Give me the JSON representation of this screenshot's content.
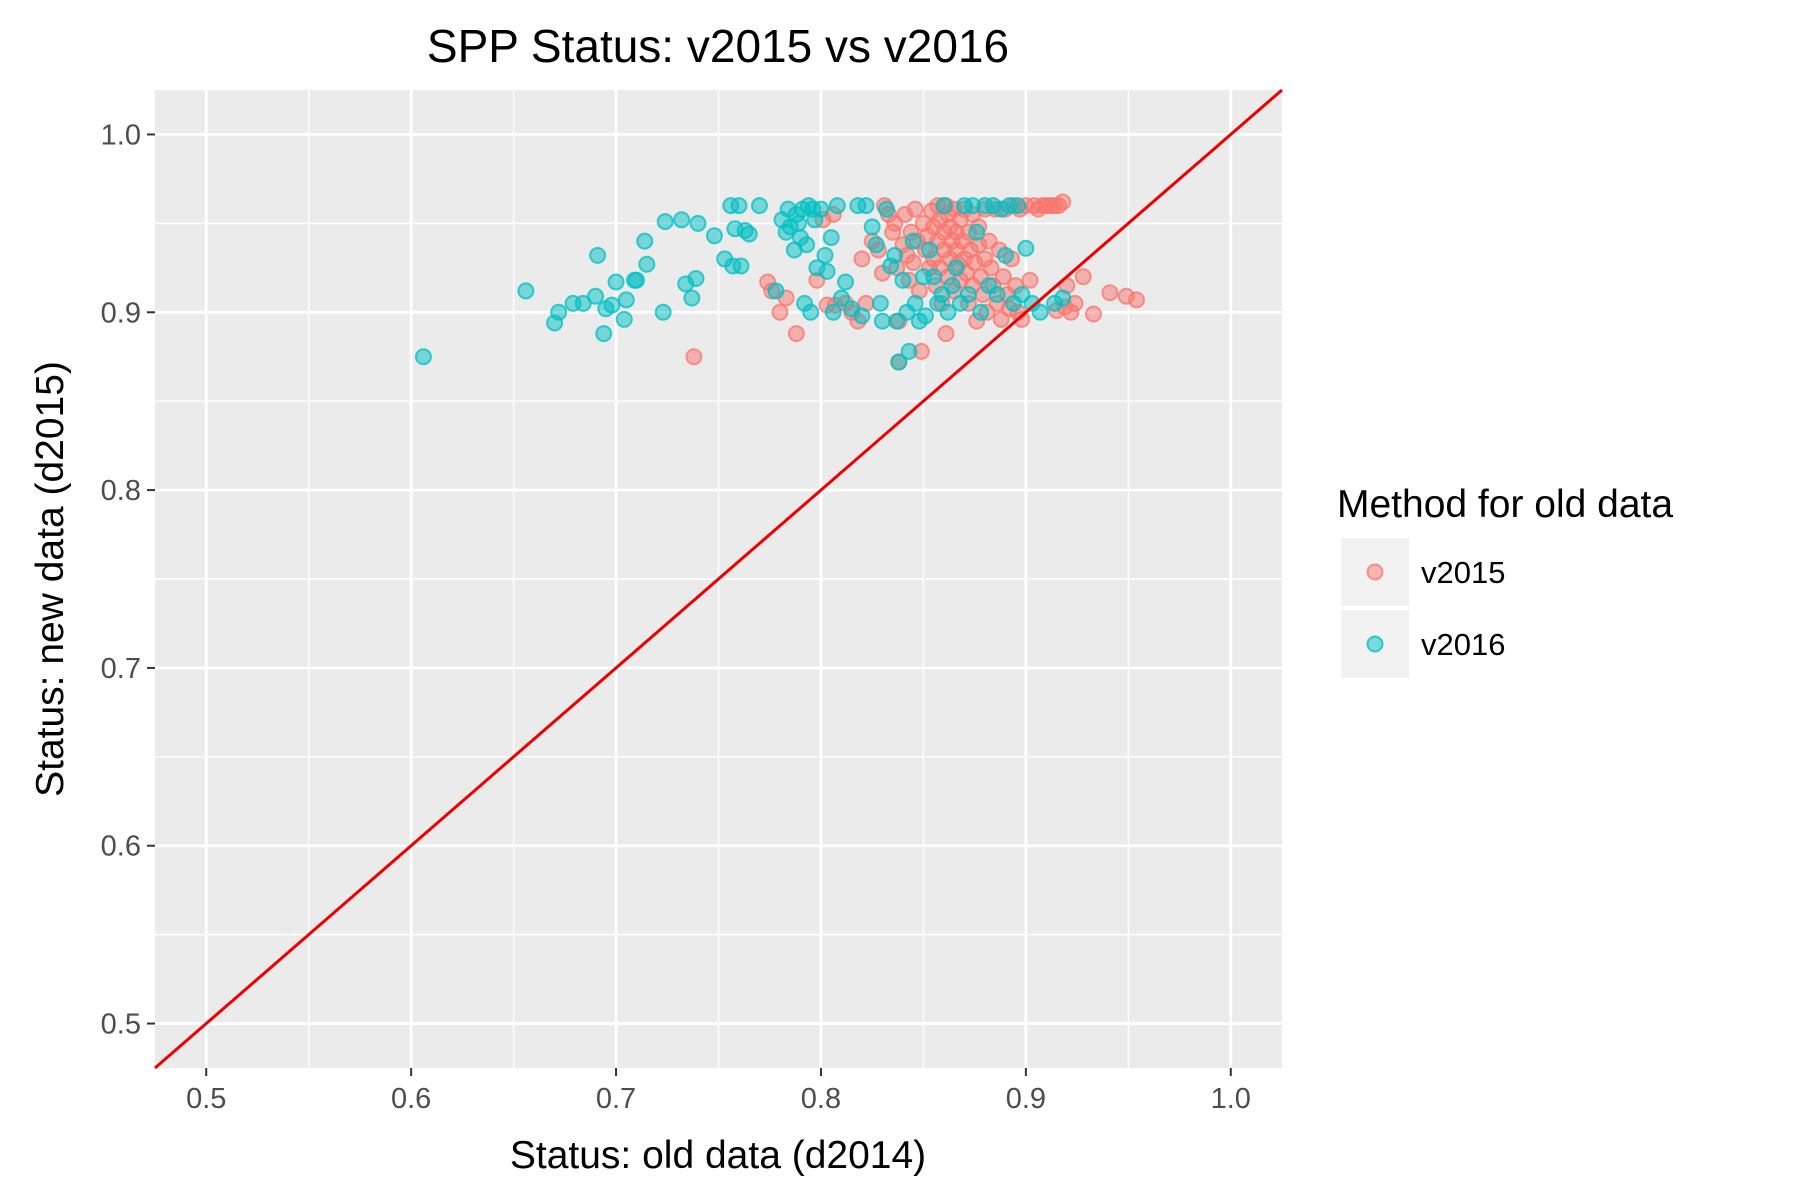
{
  "chart_data": {
    "type": "scatter",
    "title": "SPP Status: v2015 vs v2016",
    "xlabel": "Status: old data (d2014)",
    "ylabel": "Status: new data (d2015)",
    "xlim": [
      0.475,
      1.025
    ],
    "ylim": [
      0.475,
      1.025
    ],
    "x_ticks": [
      "0.5",
      "0.6",
      "0.7",
      "0.8",
      "0.9",
      "1.0"
    ],
    "y_ticks": [
      "0.5",
      "0.6",
      "0.7",
      "0.8",
      "0.9",
      "1.0"
    ],
    "grid": true,
    "legend": {
      "title": "Method for old data",
      "position": "right"
    },
    "reference_line": {
      "slope": 1,
      "intercept": 0,
      "color": "#ee0000"
    },
    "series": [
      {
        "name": "v2015",
        "color": "#F8766D",
        "points": [
          [
            0.738,
            0.875
          ],
          [
            0.774,
            0.917
          ],
          [
            0.776,
            0.912
          ],
          [
            0.78,
            0.9
          ],
          [
            0.783,
            0.908
          ],
          [
            0.788,
            0.888
          ],
          [
            0.798,
            0.918
          ],
          [
            0.801,
            0.952
          ],
          [
            0.803,
            0.904
          ],
          [
            0.806,
            0.955
          ],
          [
            0.807,
            0.904
          ],
          [
            0.812,
            0.905
          ],
          [
            0.815,
            0.9
          ],
          [
            0.818,
            0.895
          ],
          [
            0.82,
            0.93
          ],
          [
            0.822,
            0.905
          ],
          [
            0.825,
            0.94
          ],
          [
            0.828,
            0.935
          ],
          [
            0.83,
            0.922
          ],
          [
            0.831,
            0.96
          ],
          [
            0.833,
            0.955
          ],
          [
            0.835,
            0.945
          ],
          [
            0.836,
            0.95
          ],
          [
            0.837,
            0.925
          ],
          [
            0.838,
            0.895
          ],
          [
            0.838,
            0.872
          ],
          [
            0.84,
            0.938
          ],
          [
            0.841,
            0.955
          ],
          [
            0.842,
            0.932
          ],
          [
            0.843,
            0.918
          ],
          [
            0.844,
            0.945
          ],
          [
            0.845,
            0.928
          ],
          [
            0.846,
            0.958
          ],
          [
            0.847,
            0.94
          ],
          [
            0.848,
            0.912
          ],
          [
            0.849,
            0.878
          ],
          [
            0.85,
            0.95
          ],
          [
            0.851,
            0.935
          ],
          [
            0.852,
            0.943
          ],
          [
            0.853,
            0.925
          ],
          [
            0.854,
            0.957
          ],
          [
            0.855,
            0.948
          ],
          [
            0.855,
            0.93
          ],
          [
            0.856,
            0.915
          ],
          [
            0.857,
            0.96
          ],
          [
            0.857,
            0.94
          ],
          [
            0.858,
            0.952
          ],
          [
            0.858,
            0.925
          ],
          [
            0.859,
            0.905
          ],
          [
            0.86,
            0.945
          ],
          [
            0.86,
            0.935
          ],
          [
            0.861,
            0.96
          ],
          [
            0.861,
            0.888
          ],
          [
            0.862,
            0.955
          ],
          [
            0.862,
            0.92
          ],
          [
            0.863,
            0.948
          ],
          [
            0.863,
            0.93
          ],
          [
            0.864,
            0.94
          ],
          [
            0.865,
            0.958
          ],
          [
            0.865,
            0.912
          ],
          [
            0.866,
            0.945
          ],
          [
            0.866,
            0.935
          ],
          [
            0.867,
            0.927
          ],
          [
            0.868,
            0.952
          ],
          [
            0.868,
            0.918
          ],
          [
            0.869,
            0.94
          ],
          [
            0.87,
            0.958
          ],
          [
            0.87,
            0.93
          ],
          [
            0.871,
            0.922
          ],
          [
            0.872,
            0.945
          ],
          [
            0.872,
            0.905
          ],
          [
            0.873,
            0.935
          ],
          [
            0.874,
            0.955
          ],
          [
            0.874,
            0.915
          ],
          [
            0.875,
            0.928
          ],
          [
            0.876,
            0.895
          ],
          [
            0.877,
            0.948
          ],
          [
            0.877,
            0.938
          ],
          [
            0.878,
            0.92
          ],
          [
            0.879,
            0.91
          ],
          [
            0.88,
            0.958
          ],
          [
            0.88,
            0.93
          ],
          [
            0.881,
            0.9
          ],
          [
            0.882,
            0.94
          ],
          [
            0.883,
            0.925
          ],
          [
            0.884,
            0.915
          ],
          [
            0.885,
            0.958
          ],
          [
            0.886,
            0.905
          ],
          [
            0.887,
            0.935
          ],
          [
            0.888,
            0.896
          ],
          [
            0.889,
            0.92
          ],
          [
            0.89,
            0.958
          ],
          [
            0.891,
            0.91
          ],
          [
            0.892,
            0.902
          ],
          [
            0.893,
            0.93
          ],
          [
            0.894,
            0.96
          ],
          [
            0.895,
            0.915
          ],
          [
            0.896,
            0.9
          ],
          [
            0.897,
            0.958
          ],
          [
            0.898,
            0.896
          ],
          [
            0.9,
            0.96
          ],
          [
            0.902,
            0.918
          ],
          [
            0.904,
            0.96
          ],
          [
            0.906,
            0.958
          ],
          [
            0.908,
            0.96
          ],
          [
            0.91,
            0.96
          ],
          [
            0.912,
            0.96
          ],
          [
            0.914,
            0.96
          ],
          [
            0.915,
            0.901
          ],
          [
            0.916,
            0.96
          ],
          [
            0.918,
            0.962
          ],
          [
            0.919,
            0.903
          ],
          [
            0.92,
            0.915
          ],
          [
            0.922,
            0.9
          ],
          [
            0.924,
            0.905
          ],
          [
            0.928,
            0.92
          ],
          [
            0.933,
            0.899
          ],
          [
            0.941,
            0.911
          ],
          [
            0.949,
            0.909
          ],
          [
            0.954,
            0.907
          ]
        ]
      },
      {
        "name": "v2016",
        "color": "#00BFC4",
        "points": [
          [
            0.606,
            0.875
          ],
          [
            0.656,
            0.912
          ],
          [
            0.67,
            0.894
          ],
          [
            0.672,
            0.9
          ],
          [
            0.679,
            0.905
          ],
          [
            0.684,
            0.905
          ],
          [
            0.69,
            0.909
          ],
          [
            0.691,
            0.932
          ],
          [
            0.694,
            0.888
          ],
          [
            0.695,
            0.902
          ],
          [
            0.698,
            0.904
          ],
          [
            0.7,
            0.917
          ],
          [
            0.704,
            0.896
          ],
          [
            0.705,
            0.907
          ],
          [
            0.709,
            0.918
          ],
          [
            0.71,
            0.918
          ],
          [
            0.714,
            0.94
          ],
          [
            0.715,
            0.927
          ],
          [
            0.723,
            0.9
          ],
          [
            0.724,
            0.951
          ],
          [
            0.732,
            0.952
          ],
          [
            0.734,
            0.916
          ],
          [
            0.737,
            0.908
          ],
          [
            0.739,
            0.919
          ],
          [
            0.74,
            0.95
          ],
          [
            0.748,
            0.943
          ],
          [
            0.753,
            0.93
          ],
          [
            0.756,
            0.96
          ],
          [
            0.757,
            0.926
          ],
          [
            0.758,
            0.947
          ],
          [
            0.76,
            0.96
          ],
          [
            0.761,
            0.926
          ],
          [
            0.763,
            0.946
          ],
          [
            0.765,
            0.944
          ],
          [
            0.77,
            0.96
          ],
          [
            0.778,
            0.912
          ],
          [
            0.781,
            0.952
          ],
          [
            0.783,
            0.945
          ],
          [
            0.784,
            0.958
          ],
          [
            0.785,
            0.948
          ],
          [
            0.787,
            0.935
          ],
          [
            0.788,
            0.955
          ],
          [
            0.789,
            0.95
          ],
          [
            0.79,
            0.942
          ],
          [
            0.791,
            0.958
          ],
          [
            0.792,
            0.905
          ],
          [
            0.793,
            0.938
          ],
          [
            0.794,
            0.96
          ],
          [
            0.795,
            0.9
          ],
          [
            0.796,
            0.958
          ],
          [
            0.797,
            0.952
          ],
          [
            0.798,
            0.925
          ],
          [
            0.8,
            0.958
          ],
          [
            0.802,
            0.932
          ],
          [
            0.803,
            0.923
          ],
          [
            0.805,
            0.942
          ],
          [
            0.806,
            0.9
          ],
          [
            0.808,
            0.96
          ],
          [
            0.81,
            0.908
          ],
          [
            0.812,
            0.917
          ],
          [
            0.815,
            0.902
          ],
          [
            0.818,
            0.96
          ],
          [
            0.82,
            0.898
          ],
          [
            0.822,
            0.96
          ],
          [
            0.825,
            0.948
          ],
          [
            0.827,
            0.938
          ],
          [
            0.829,
            0.905
          ],
          [
            0.83,
            0.895
          ],
          [
            0.832,
            0.958
          ],
          [
            0.834,
            0.926
          ],
          [
            0.836,
            0.932
          ],
          [
            0.837,
            0.895
          ],
          [
            0.838,
            0.872
          ],
          [
            0.84,
            0.918
          ],
          [
            0.842,
            0.9
          ],
          [
            0.843,
            0.878
          ],
          [
            0.845,
            0.94
          ],
          [
            0.846,
            0.905
          ],
          [
            0.848,
            0.895
          ],
          [
            0.85,
            0.92
          ],
          [
            0.851,
            0.898
          ],
          [
            0.853,
            0.935
          ],
          [
            0.855,
            0.92
          ],
          [
            0.857,
            0.905
          ],
          [
            0.859,
            0.91
          ],
          [
            0.86,
            0.96
          ],
          [
            0.862,
            0.9
          ],
          [
            0.864,
            0.915
          ],
          [
            0.866,
            0.925
          ],
          [
            0.868,
            0.905
          ],
          [
            0.87,
            0.96
          ],
          [
            0.872,
            0.91
          ],
          [
            0.874,
            0.96
          ],
          [
            0.876,
            0.945
          ],
          [
            0.878,
            0.9
          ],
          [
            0.88,
            0.96
          ],
          [
            0.882,
            0.915
          ],
          [
            0.884,
            0.96
          ],
          [
            0.886,
            0.91
          ],
          [
            0.888,
            0.958
          ],
          [
            0.89,
            0.932
          ],
          [
            0.892,
            0.96
          ],
          [
            0.894,
            0.905
          ],
          [
            0.896,
            0.96
          ],
          [
            0.898,
            0.91
          ],
          [
            0.9,
            0.936
          ],
          [
            0.903,
            0.905
          ],
          [
            0.907,
            0.9
          ],
          [
            0.914,
            0.905
          ],
          [
            0.918,
            0.908
          ]
        ]
      }
    ]
  }
}
